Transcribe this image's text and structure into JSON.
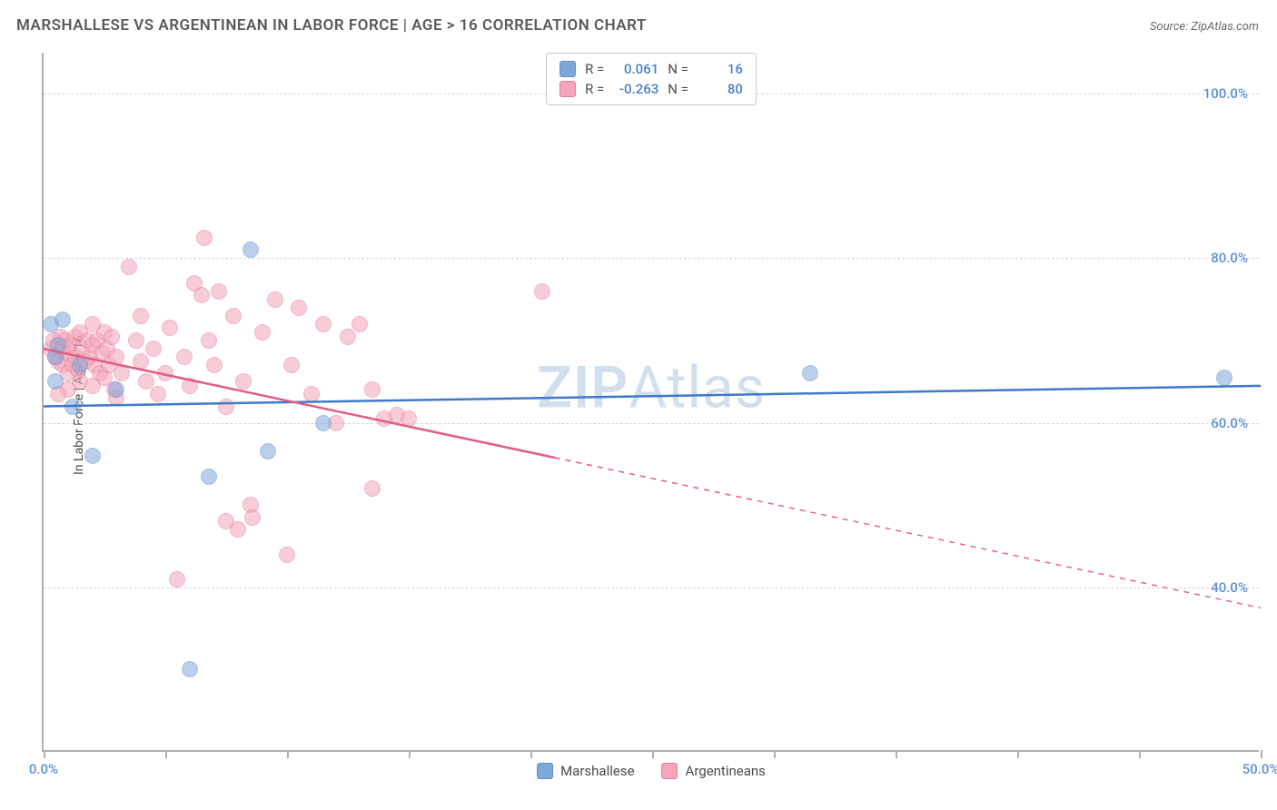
{
  "title": "MARSHALLESE VS ARGENTINEAN IN LABOR FORCE | AGE > 16 CORRELATION CHART",
  "source": "Source: ZipAtlas.com",
  "y_axis_label": "In Labor Force | Age > 16",
  "watermark_bold": "ZIP",
  "watermark_light": "Atlas",
  "chart": {
    "type": "scatter",
    "background_color": "#ffffff",
    "axis_color": "#b0b0b0",
    "grid_color": "#d8d8d8",
    "grid_dash": true,
    "xlim": [
      0,
      50
    ],
    "ylim": [
      20,
      105
    ],
    "x_ticks": [
      0,
      5,
      10,
      15,
      20,
      25,
      30,
      35,
      40,
      45,
      50
    ],
    "x_tick_labels": {
      "0": "0.0%",
      "50": "50.0%"
    },
    "y_ticks": [
      40,
      60,
      80,
      100
    ],
    "y_tick_labels": {
      "40": "40.0%",
      "60": "60.0%",
      "80": "80.0%",
      "100": "100.0%"
    },
    "marker_radius": 9,
    "marker_opacity": 0.55,
    "line_width": 2.5,
    "tick_label_color": "#5b8fd6"
  },
  "series": {
    "marshallese": {
      "label": "Marshallese",
      "color": "#7fa7d8",
      "border_color": "#5b8fd6",
      "R": "0.061",
      "N": "16",
      "regression": {
        "x1": 0,
        "y1": 62,
        "x2": 50,
        "y2": 64.5,
        "color": "#3f7ac8",
        "dash_after_x": null
      },
      "points": [
        [
          0.3,
          72
        ],
        [
          0.5,
          68
        ],
        [
          0.6,
          69.5
        ],
        [
          0.8,
          72.5
        ],
        [
          1.2,
          62
        ],
        [
          2.0,
          56
        ],
        [
          1.5,
          67
        ],
        [
          6.0,
          30
        ],
        [
          6.8,
          53.5
        ],
        [
          8.5,
          81
        ],
        [
          9.2,
          56.5
        ],
        [
          11.5,
          60
        ],
        [
          31.5,
          66
        ],
        [
          48.5,
          65.5
        ],
        [
          0.5,
          65
        ],
        [
          3.0,
          64
        ]
      ]
    },
    "argentineans": {
      "label": "Argentineans",
      "color": "#f4a5b9",
      "border_color": "#e87a96",
      "R": "-0.263",
      "N": "80",
      "regression": {
        "x1": 0,
        "y1": 69,
        "x2": 50,
        "y2": 37.5,
        "color": "#e35d81",
        "dash_after_x": 21
      },
      "points": [
        [
          0.3,
          69
        ],
        [
          0.4,
          70
        ],
        [
          0.5,
          68
        ],
        [
          0.6,
          67.5
        ],
        [
          0.7,
          70.5
        ],
        [
          0.8,
          69
        ],
        [
          0.8,
          67
        ],
        [
          0.9,
          70
        ],
        [
          1.0,
          68.5
        ],
        [
          1.0,
          66
        ],
        [
          1.1,
          69.5
        ],
        [
          1.2,
          67
        ],
        [
          1.3,
          68
        ],
        [
          1.3,
          70.5
        ],
        [
          1.4,
          66.5
        ],
        [
          1.5,
          65
        ],
        [
          1.5,
          71
        ],
        [
          1.6,
          69
        ],
        [
          1.7,
          67.5
        ],
        [
          1.8,
          70
        ],
        [
          1.9,
          68
        ],
        [
          2.0,
          64.5
        ],
        [
          2.0,
          69.5
        ],
        [
          2.1,
          67
        ],
        [
          2.2,
          70
        ],
        [
          2.3,
          66
        ],
        [
          2.4,
          68.5
        ],
        [
          2.5,
          65.5
        ],
        [
          2.5,
          71
        ],
        [
          2.6,
          69
        ],
        [
          2.7,
          67
        ],
        [
          2.8,
          70.5
        ],
        [
          2.9,
          64
        ],
        [
          3.0,
          68
        ],
        [
          3.5,
          79
        ],
        [
          3.0,
          63
        ],
        [
          3.8,
          70
        ],
        [
          4.0,
          67.5
        ],
        [
          4.2,
          65
        ],
        [
          4.5,
          69
        ],
        [
          4.7,
          63.5
        ],
        [
          5.0,
          66
        ],
        [
          5.2,
          71.5
        ],
        [
          5.5,
          41
        ],
        [
          5.8,
          68
        ],
        [
          6.0,
          64.5
        ],
        [
          6.2,
          77
        ],
        [
          6.5,
          75.5
        ],
        [
          6.6,
          82.5
        ],
        [
          6.8,
          70
        ],
        [
          7.0,
          67
        ],
        [
          7.2,
          76
        ],
        [
          7.5,
          48
        ],
        [
          7.5,
          62
        ],
        [
          7.8,
          73
        ],
        [
          8.0,
          47
        ],
        [
          8.2,
          65
        ],
        [
          8.5,
          50
        ],
        [
          8.6,
          48.5
        ],
        [
          9.0,
          71
        ],
        [
          9.5,
          75
        ],
        [
          10.0,
          44
        ],
        [
          10.2,
          67
        ],
        [
          10.5,
          74
        ],
        [
          11.0,
          63.5
        ],
        [
          11.5,
          72
        ],
        [
          12.0,
          60
        ],
        [
          12.5,
          70.5
        ],
        [
          13.0,
          72
        ],
        [
          13.5,
          64
        ],
        [
          13.5,
          52
        ],
        [
          14.0,
          60.5
        ],
        [
          14.5,
          61
        ],
        [
          15.0,
          60.5
        ],
        [
          20.5,
          76
        ],
        [
          2.0,
          72
        ],
        [
          3.2,
          66
        ],
        [
          1.0,
          64
        ],
        [
          0.6,
          63.5
        ],
        [
          4.0,
          73
        ]
      ]
    }
  },
  "stats_box": {
    "R_label": "R =",
    "N_label": "N ="
  },
  "bottom_legend": [
    "marshallese",
    "argentineans"
  ]
}
